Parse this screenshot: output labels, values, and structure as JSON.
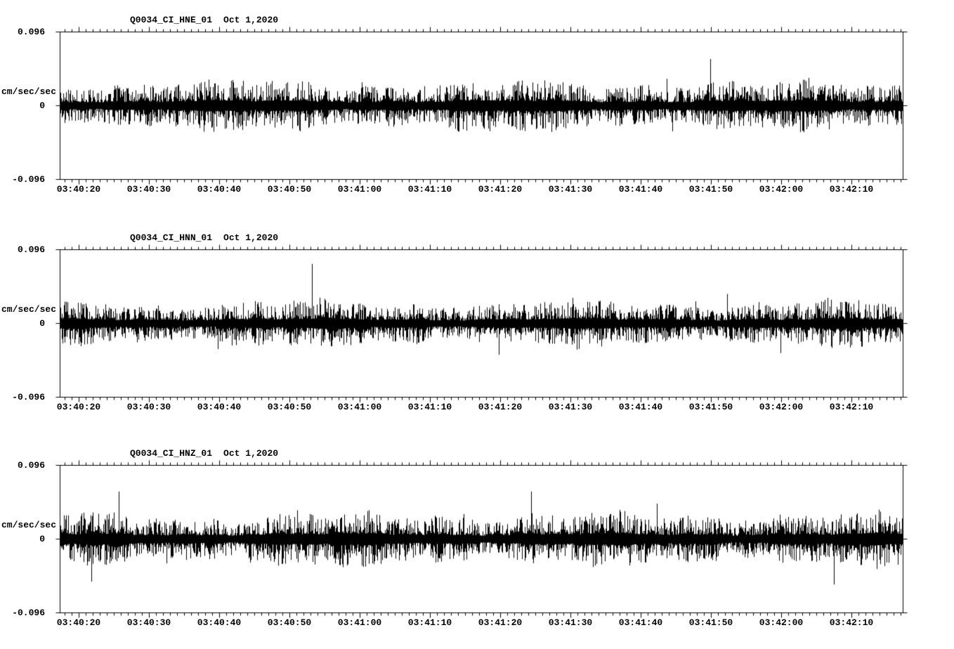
{
  "figure": {
    "background_color": "#ffffff",
    "trace_color": "#000000",
    "text_color": "#000000"
  },
  "chart_data": [
    {
      "type": "line",
      "title": "Q0034_CI_HNE_01",
      "date_label": "Oct 1,2020",
      "ylabel": "cm/sec/sec",
      "ylim": [
        -0.096,
        0.096
      ],
      "ytick_labels": [
        "0.096",
        "0",
        "-0.096"
      ],
      "x_tick_labels": [
        "03:40:20",
        "03:40:30",
        "03:40:40",
        "03:40:50",
        "03:41:00",
        "03:41:10",
        "03:41:20",
        "03:41:30",
        "03:41:40",
        "03:41:50",
        "03:42:00",
        "03:42:10"
      ],
      "x_range_seconds": 120,
      "grid": false,
      "legend": "none",
      "waveform": {
        "kind": "broadband-seismic-noise",
        "mean": 0,
        "typical_amplitude": 0.015,
        "peak_amplitude": 0.05,
        "units": "cm/sec/sec",
        "seed": 20201001,
        "base_fraction": 0.17
      }
    },
    {
      "type": "line",
      "title": "Q0034_CI_HNN_01",
      "date_label": "Oct 1,2020",
      "ylabel": "cm/sec/sec",
      "ylim": [
        -0.096,
        0.096
      ],
      "ytick_labels": [
        "0.096",
        "0",
        "-0.096"
      ],
      "x_tick_labels": [
        "03:40:20",
        "03:40:30",
        "03:40:40",
        "03:40:50",
        "03:41:00",
        "03:41:10",
        "03:41:20",
        "03:41:30",
        "03:41:40",
        "03:41:50",
        "03:42:00",
        "03:42:10"
      ],
      "x_range_seconds": 120,
      "grid": false,
      "legend": "none",
      "waveform": {
        "kind": "broadband-seismic-noise",
        "mean": 0,
        "typical_amplitude": 0.013,
        "peak_amplitude": 0.045,
        "units": "cm/sec/sec",
        "seed": 20201002,
        "base_fraction": 0.155
      }
    },
    {
      "type": "line",
      "title": "Q0034_CI_HNZ_01",
      "date_label": "Oct 1,2020",
      "ylabel": "cm/sec/sec",
      "ylim": [
        -0.096,
        0.096
      ],
      "ytick_labels": [
        "0.096",
        "0",
        "-0.096"
      ],
      "x_tick_labels": [
        "03:40:20",
        "03:40:30",
        "03:40:40",
        "03:40:50",
        "03:41:00",
        "03:41:10",
        "03:41:20",
        "03:41:30",
        "03:41:40",
        "03:41:50",
        "03:42:00",
        "03:42:10"
      ],
      "x_range_seconds": 120,
      "grid": false,
      "legend": "none",
      "waveform": {
        "kind": "broadband-seismic-noise",
        "mean": 0,
        "typical_amplitude": 0.016,
        "peak_amplitude": 0.05,
        "units": "cm/sec/sec",
        "seed": 20201003,
        "base_fraction": 0.18
      }
    }
  ]
}
